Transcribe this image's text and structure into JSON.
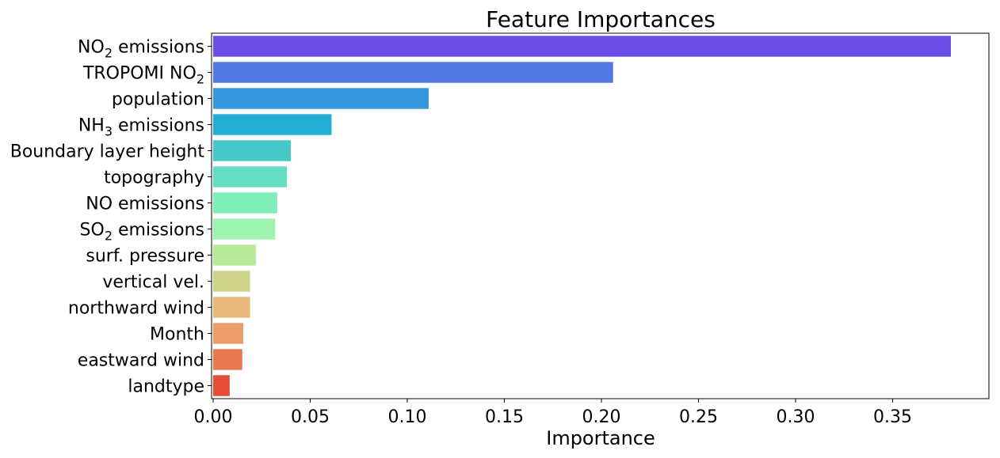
{
  "chart_data": {
    "type": "bar",
    "orientation": "horizontal",
    "title": "Feature Importances",
    "xlabel": "Importance",
    "ylabel": "",
    "xlim": [
      0,
      0.4
    ],
    "xticks": [
      "0.00",
      "0.05",
      "0.10",
      "0.15",
      "0.20",
      "0.25",
      "0.30",
      "0.35"
    ],
    "grid": false,
    "legend": "none",
    "categories": [
      {
        "label": "NO2 emissions",
        "parts": [
          {
            "t": "NO"
          },
          {
            "t": "2",
            "sub": true
          },
          {
            "t": " emissions"
          }
        ]
      },
      {
        "label": "TROPOMI NO2",
        "parts": [
          {
            "t": "TROPOMI NO"
          },
          {
            "t": "2",
            "sub": true
          }
        ]
      },
      {
        "label": "population",
        "parts": [
          {
            "t": "population"
          }
        ]
      },
      {
        "label": "NH3 emissions",
        "parts": [
          {
            "t": "NH"
          },
          {
            "t": "3",
            "sub": true
          },
          {
            "t": " emissions"
          }
        ]
      },
      {
        "label": "Boundary layer height",
        "parts": [
          {
            "t": "Boundary layer height"
          }
        ]
      },
      {
        "label": "topography",
        "parts": [
          {
            "t": "topography"
          }
        ]
      },
      {
        "label": "NO emissions",
        "parts": [
          {
            "t": "NO emissions"
          }
        ]
      },
      {
        "label": "SO2 emissions",
        "parts": [
          {
            "t": "SO"
          },
          {
            "t": "2",
            "sub": true
          },
          {
            "t": " emissions"
          }
        ]
      },
      {
        "label": "surf. pressure",
        "parts": [
          {
            "t": "surf. pressure"
          }
        ]
      },
      {
        "label": "vertical vel.",
        "parts": [
          {
            "t": "vertical vel."
          }
        ]
      },
      {
        "label": "northward wind",
        "parts": [
          {
            "t": "northward wind"
          }
        ]
      },
      {
        "label": "Month",
        "parts": [
          {
            "t": "Month"
          }
        ]
      },
      {
        "label": "eastward wind",
        "parts": [
          {
            "t": "eastward wind"
          }
        ]
      },
      {
        "label": "landtype",
        "parts": [
          {
            "t": "landtype"
          }
        ]
      }
    ],
    "values": [
      0.38,
      0.206,
      0.111,
      0.061,
      0.04,
      0.038,
      0.033,
      0.032,
      0.022,
      0.019,
      0.019,
      0.0155,
      0.015,
      0.0085
    ],
    "colors": [
      "#6a4ee6",
      "#5478e4",
      "#3796dc",
      "#23afd2",
      "#45c9c8",
      "#64deC3",
      "#80eeb8",
      "#9ff3b0",
      "#b8e89a",
      "#cfd38a",
      "#e8b87a",
      "#eb9c68",
      "#e8794f",
      "#e54e36"
    ]
  }
}
